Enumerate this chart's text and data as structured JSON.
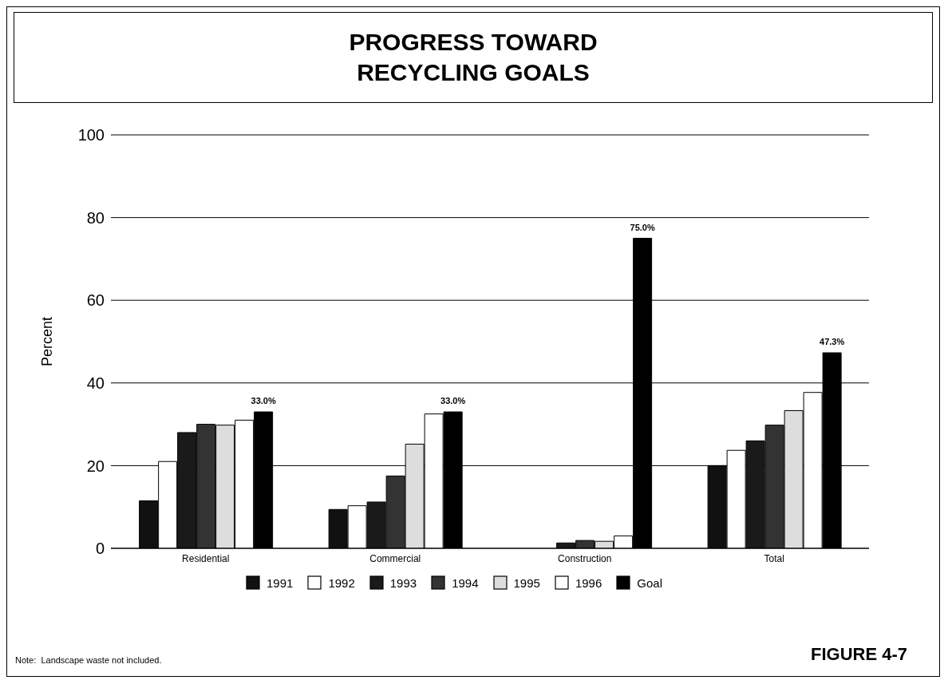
{
  "chart_data": {
    "type": "bar",
    "title": "PROGRESS TOWARD\nRECYCLING GOALS",
    "ylabel": "Percent",
    "categories": [
      "Residential",
      "Commercial",
      "Construction",
      "Total"
    ],
    "series": [
      {
        "name": "1991",
        "color": "#111111",
        "values": [
          11.5,
          9.4,
          null,
          20
        ]
      },
      {
        "name": "1992",
        "color": "#ffffff",
        "values": [
          21,
          10.3,
          null,
          23.7
        ]
      },
      {
        "name": "1993",
        "color": "#1a1a1a",
        "values": [
          28,
          11.2,
          1.3,
          26
        ]
      },
      {
        "name": "1994",
        "color": "#333333",
        "values": [
          30,
          17.5,
          1.9,
          29.8
        ]
      },
      {
        "name": "1995",
        "color": "#dddddd",
        "values": [
          29.8,
          25.2,
          1.7,
          33.3
        ]
      },
      {
        "name": "1996",
        "color": "#ffffff",
        "values": [
          31,
          32.5,
          3,
          37.7
        ]
      },
      {
        "name": "Goal",
        "color": "#000000",
        "values": [
          33,
          33,
          75,
          47.3
        ],
        "value_labels": [
          "33.0%",
          "33.0%",
          "75.0%",
          "47.3%"
        ]
      }
    ],
    "ylim": [
      0,
      100
    ],
    "yticks": [
      0,
      20,
      40,
      60,
      80,
      100
    ],
    "grid": "y",
    "legend": "bottom",
    "annotations": [
      "Note:  Landscape waste not included.",
      "FIGURE 4-7"
    ]
  }
}
